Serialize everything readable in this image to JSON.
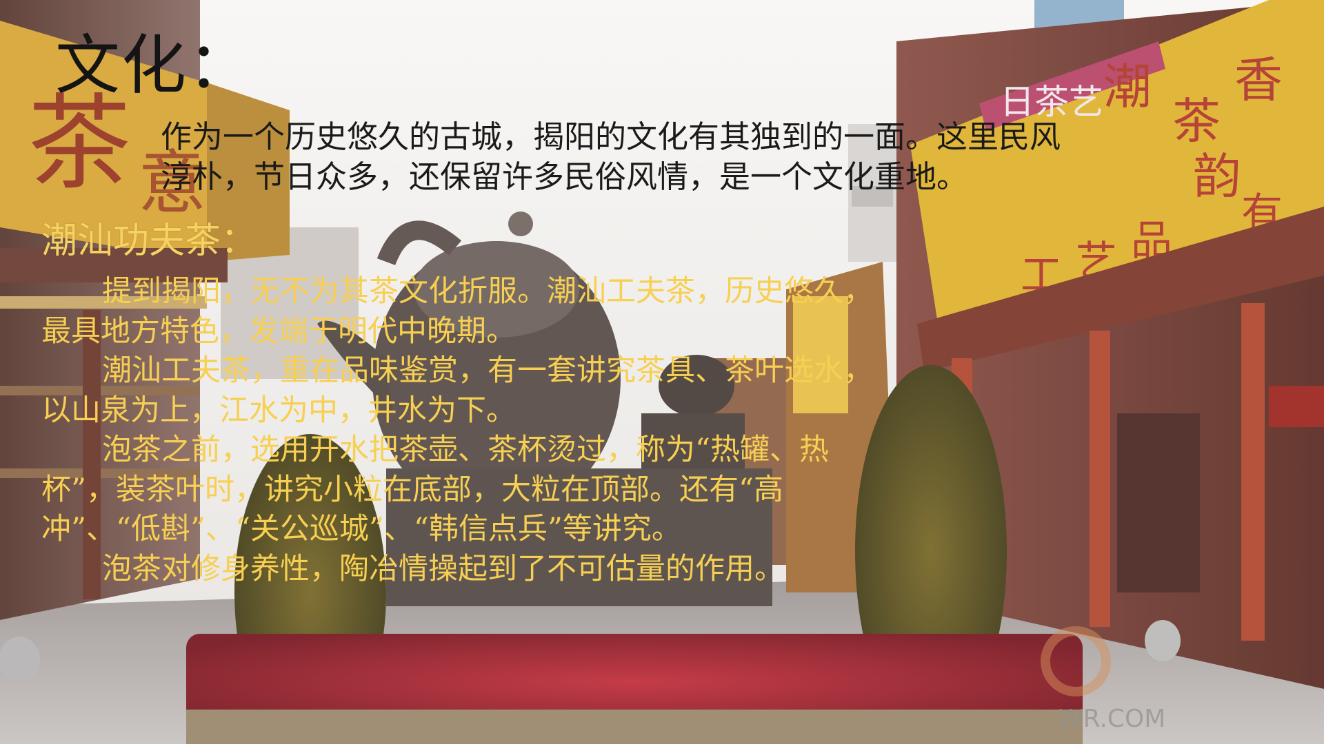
{
  "slide": {
    "title": "文化：",
    "intro_lines": [
      "作为一个历史悠久的古城，揭阳的文化有其独到的一面。这里民风",
      "淳朴，节日众多，还保留许多民俗风情，是一个文化重地。"
    ],
    "subtitle": "潮汕功夫茶：",
    "body_lines": [
      "提到揭阳，无不为其茶文化折服。潮汕工夫茶，历史悠久，",
      "最具地方特色，发端于明代中晚期。",
      "潮汕工夫茶，重在品味鉴赏，有一套讲究茶具、茶叶选水，",
      "以山泉为上，江水为中，井水为下。",
      "泡茶之前，选用开水把茶壶、茶杯烫过，称为“热罐、热",
      "杯”，装茶叶时，讲究小粒在底部，大粒在顶部。还有“高",
      "冲”、“低斟”、“关公巡城”、“韩信点兵”等讲究。",
      "泡茶对修身养性，陶冶情操起到了不可估量的作用。"
    ],
    "background": {
      "shop_sign_left": "茶",
      "shop_sign_left_2": "意",
      "shop_sign_top": "日茶艺",
      "shop_sign_right_big": [
        "潮",
        "茶",
        "香",
        "韵",
        "工",
        "艺",
        "品",
        "有"
      ],
      "watermark": "WR.COM"
    }
  },
  "colors": {
    "title": "#141414",
    "intro": "#1a1a1a",
    "gold_text": "#f7cf52",
    "sign_yellow": "#e8bf2a",
    "sign_red": "#a8322a",
    "sky": "#f2f0ee"
  }
}
